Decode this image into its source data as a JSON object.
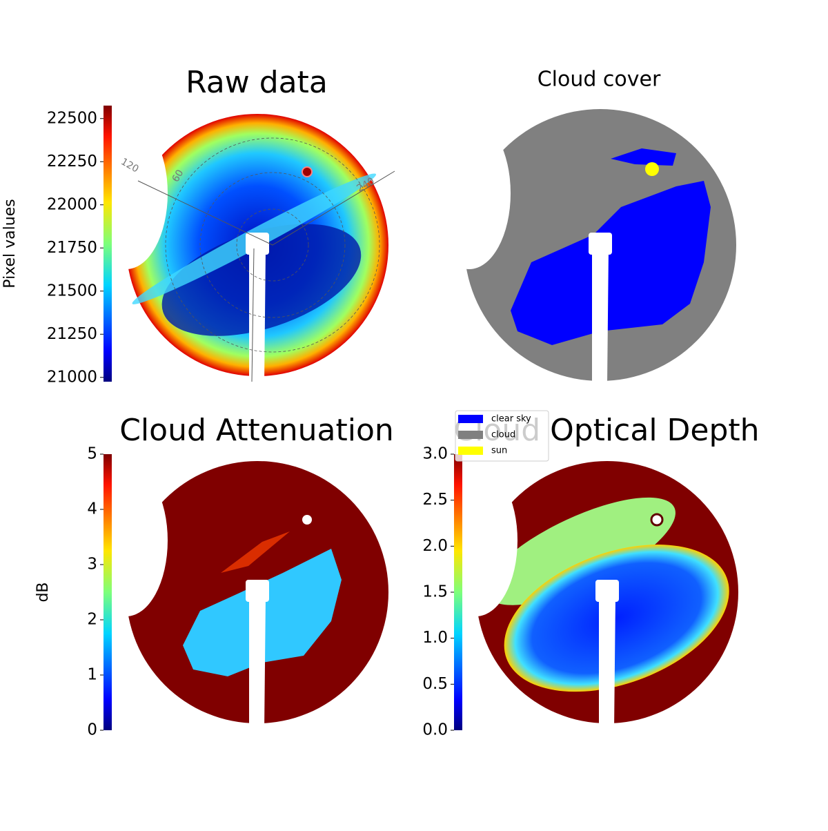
{
  "chart_data": [
    {
      "type": "image",
      "title": "Raw data",
      "colorbar": {
        "label": "Pixel values",
        "ylim": [
          20975,
          22575
        ],
        "yticks": [
          21000,
          21250,
          21500,
          21750,
          22000,
          22250,
          22500
        ]
      },
      "annotations": [
        "120",
        "60",
        "240"
      ]
    },
    {
      "type": "image",
      "title": "Cloud cover",
      "series": [
        {
          "name": "clear sky",
          "color": "#0000ff"
        },
        {
          "name": "cloud",
          "color": "#808080"
        },
        {
          "name": "sun",
          "color": "#ffff00"
        }
      ]
    },
    {
      "type": "image",
      "title": "Cloud Attenuation",
      "colorbar": {
        "label": "dB",
        "ylim": [
          0,
          5
        ],
        "yticks": [
          0,
          1,
          2,
          3,
          4,
          5
        ]
      }
    },
    {
      "type": "image",
      "title": "Cloud Optical Depth",
      "colorbar": {
        "ylim": [
          0,
          3
        ],
        "yticks": [
          {
            "value": 0,
            "label": "0.0"
          },
          0.5,
          {
            "value": 1,
            "label": "1.0"
          },
          1.5,
          {
            "value": 2,
            "label": "2.0"
          },
          2.5,
          {
            "value": 3,
            "label": "3.0"
          }
        ]
      }
    }
  ]
}
